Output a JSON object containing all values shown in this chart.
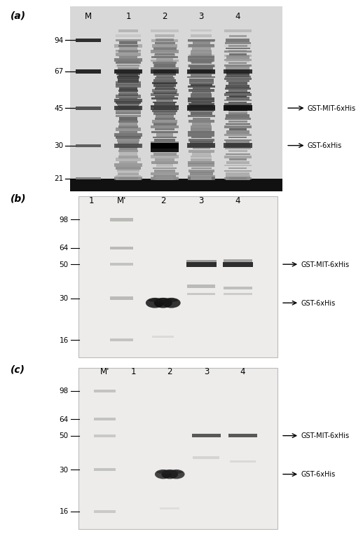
{
  "panel_a": {
    "label": "(a)",
    "lane_labels": [
      "M",
      "1",
      "2",
      "3",
      "4"
    ],
    "mw_markers": [
      94,
      67,
      45,
      30,
      21
    ],
    "annotation1": "GST-MIT-6xHis",
    "annotation2": "GST-6xHis",
    "gel_bg": "#c8c8c8"
  },
  "panel_b": {
    "label": "(b)",
    "lane_labels": [
      "1",
      "M'",
      "2",
      "3",
      "4"
    ],
    "mw_markers": [
      98,
      64,
      50,
      30,
      16
    ],
    "annotation1": "GST-MIT-6xHis",
    "annotation2": "GST-6xHis",
    "gel_bg": "#edecea"
  },
  "panel_c": {
    "label": "(c)",
    "lane_labels": [
      "M'",
      "1",
      "2",
      "3",
      "4"
    ],
    "mw_markers": [
      98,
      64,
      50,
      30,
      16
    ],
    "annotation1": "GST-MIT-6xHis",
    "annotation2": "GST-6xHis",
    "gel_bg": "#edecea"
  }
}
